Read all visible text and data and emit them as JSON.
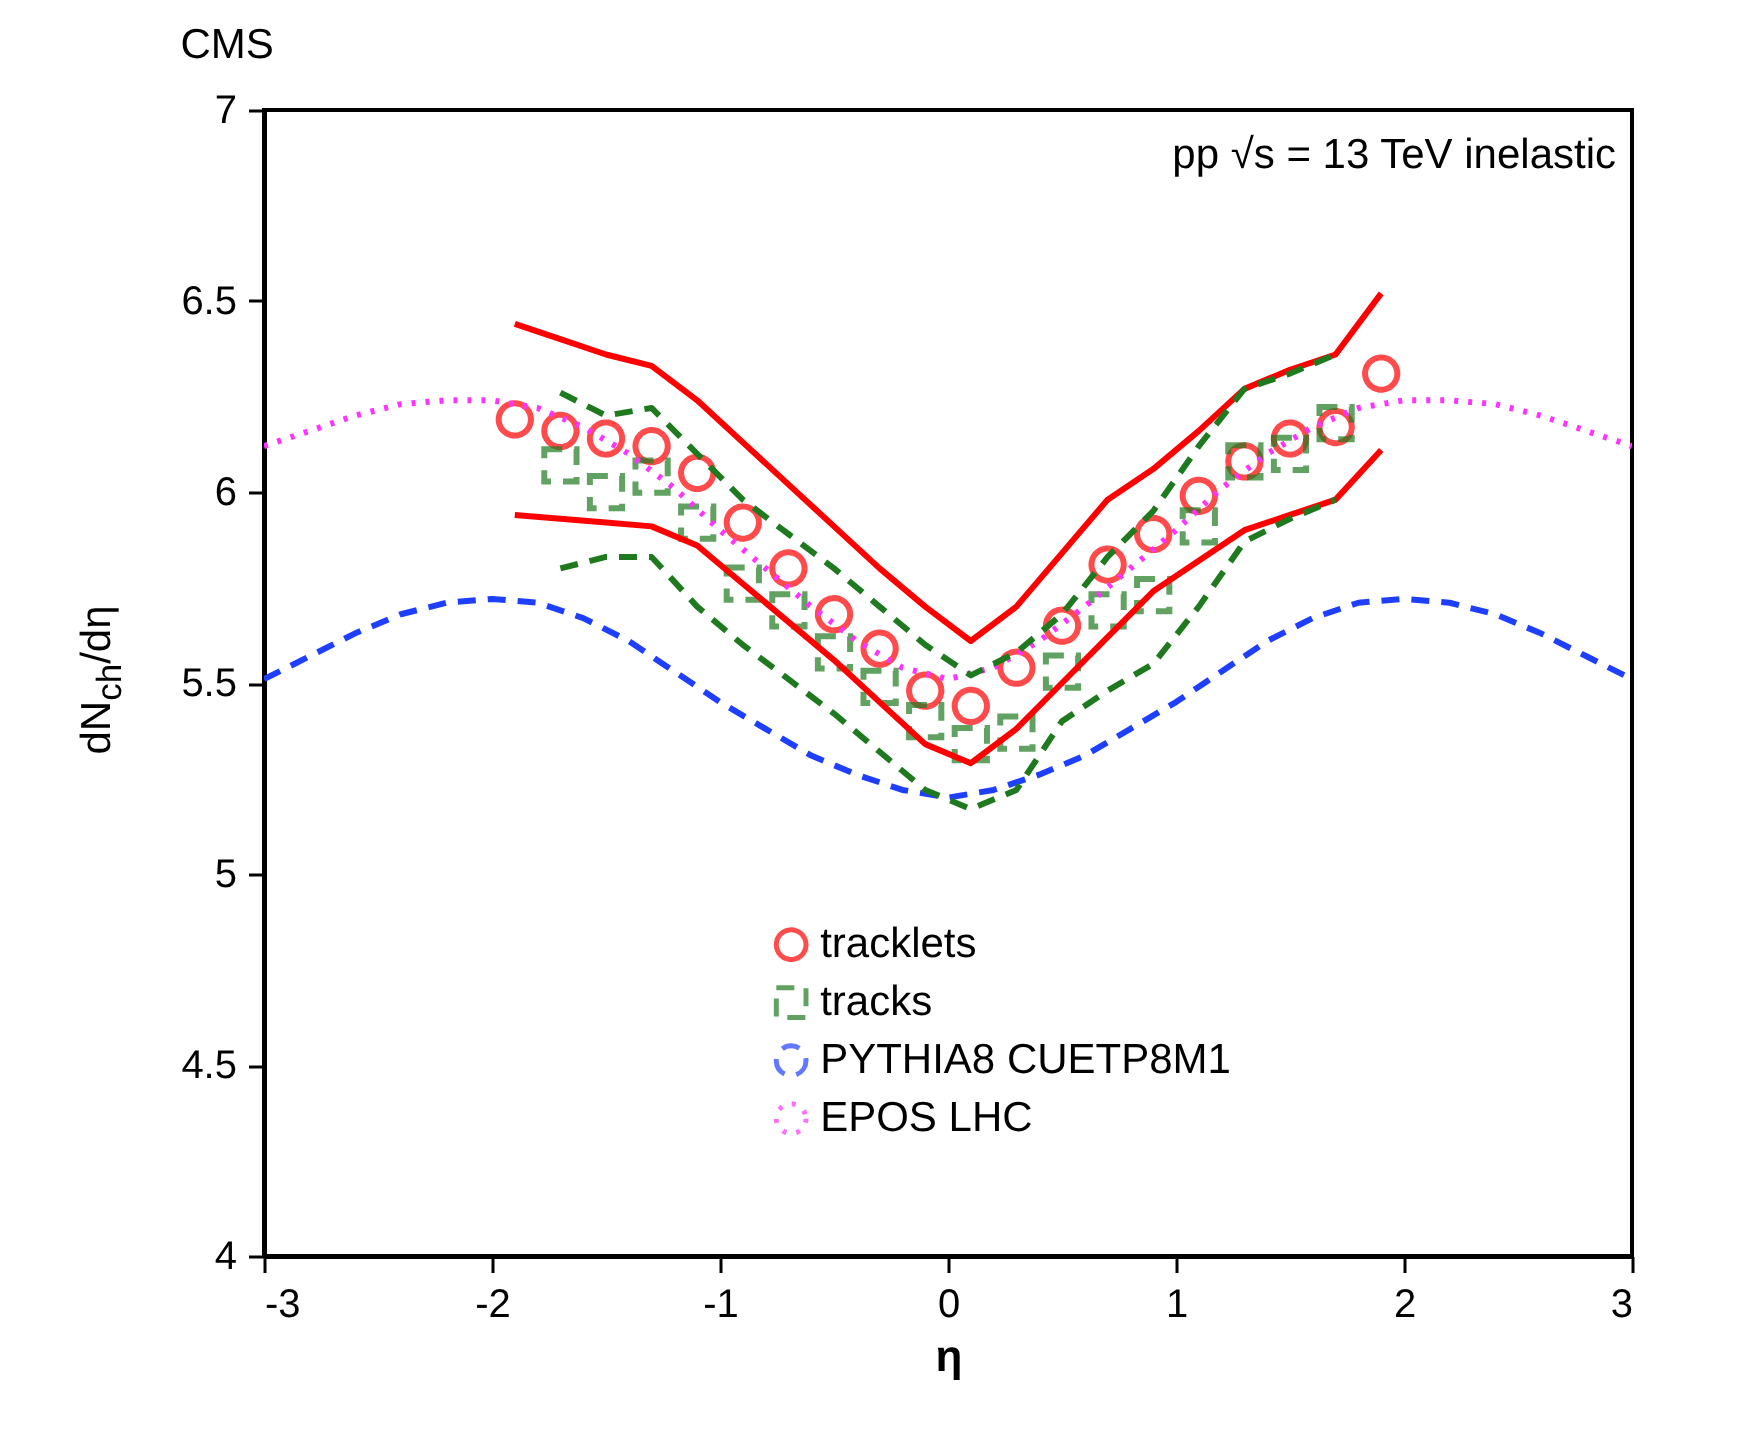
{
  "chart_data": {
    "type": "scatter",
    "title": "CMS",
    "xlabel": "η",
    "ylabel": "dN$_{ch}$/dη",
    "annotations": [
      "pp √s = 13 TeV inelastic"
    ],
    "xlim": [
      -3,
      3
    ],
    "xticks": [
      -3,
      -2,
      -1,
      0,
      1,
      2,
      3
    ],
    "ylim": [
      4,
      7
    ],
    "yticks": [
      4,
      4.5,
      5,
      5.5,
      6,
      6.5,
      7
    ],
    "grid": false,
    "legend": "bottom right",
    "series": [
      {
        "name": "tracklets",
        "marker": "circle",
        "line_style": "solid",
        "color": "#ff0000",
        "x": [
          -1.9,
          -1.7,
          -1.5,
          -1.3,
          -1.1,
          -0.9,
          -0.7,
          -0.5,
          -0.3,
          -0.1,
          0.1,
          0.3,
          0.5,
          0.7,
          0.9,
          1.1,
          1.3,
          1.5,
          1.7,
          1.9
        ],
        "values": [
          6.19,
          6.16,
          6.14,
          6.12,
          6.05,
          5.92,
          5.8,
          5.68,
          5.59,
          5.48,
          5.44,
          5.54,
          5.65,
          5.81,
          5.89,
          5.99,
          6.08,
          6.14,
          6.17,
          6.31
        ]
      },
      {
        "name": "tracks",
        "marker": "square",
        "line_style": "dashed",
        "color": "#1f7a1f",
        "x": [
          -1.7,
          -1.5,
          -1.3,
          -1.1,
          -0.9,
          -0.7,
          -0.5,
          -0.3,
          -0.1,
          0.1,
          0.3,
          0.5,
          0.7,
          0.9,
          1.1,
          1.3,
          1.5,
          1.7
        ],
        "values": [
          6.07,
          6.0,
          6.04,
          5.92,
          5.76,
          5.69,
          5.58,
          5.49,
          5.4,
          5.34,
          5.37,
          5.53,
          5.69,
          5.73,
          5.91,
          6.08,
          6.1,
          6.18
        ]
      },
      {
        "name": "PYTHIA8 CUETP8M1",
        "type": "line",
        "line_style": "dashed",
        "color": "#1f3fff",
        "x": [
          -3,
          -2.8,
          -2.6,
          -2.4,
          -2.2,
          -2,
          -1.8,
          -1.6,
          -1.4,
          -1.2,
          -1,
          -0.8,
          -0.6,
          -0.4,
          -0.2,
          0,
          0.2,
          0.4,
          0.6,
          0.8,
          1,
          1.2,
          1.4,
          1.6,
          1.8,
          2,
          2.2,
          2.4,
          2.6,
          2.8,
          3
        ],
        "values": [
          5.51,
          5.57,
          5.63,
          5.68,
          5.71,
          5.72,
          5.71,
          5.67,
          5.61,
          5.53,
          5.45,
          5.38,
          5.31,
          5.26,
          5.22,
          5.2,
          5.22,
          5.26,
          5.31,
          5.38,
          5.45,
          5.53,
          5.61,
          5.67,
          5.71,
          5.72,
          5.71,
          5.68,
          5.63,
          5.57,
          5.51
        ]
      },
      {
        "name": "EPOS LHC",
        "type": "line",
        "line_style": "dotted",
        "color": "#ff33ff",
        "x": [
          -3,
          -2.8,
          -2.6,
          -2.4,
          -2.2,
          -2,
          -1.8,
          -1.6,
          -1.4,
          -1.2,
          -1,
          -0.8,
          -0.6,
          -0.4,
          -0.2,
          0,
          0.2,
          0.4,
          0.6,
          0.8,
          1,
          1.2,
          1.4,
          1.6,
          1.8,
          2,
          2.2,
          2.4,
          2.6,
          2.8,
          3
        ],
        "values": [
          6.12,
          6.16,
          6.2,
          6.23,
          6.24,
          6.24,
          6.22,
          6.17,
          6.1,
          6.01,
          5.9,
          5.8,
          5.7,
          5.61,
          5.54,
          5.51,
          5.54,
          5.61,
          5.7,
          5.8,
          5.9,
          6.01,
          6.1,
          6.17,
          6.22,
          6.24,
          6.24,
          6.23,
          6.2,
          6.16,
          6.12
        ]
      },
      {
        "type": "line",
        "line_style": "solid",
        "color": "#ff0000",
        "x": [
          -1.9,
          -1.7,
          -1.5,
          -1.3,
          -1.1,
          -0.9,
          -0.7,
          -0.5,
          -0.3,
          -0.1,
          0.1,
          0.3,
          0.5,
          0.7,
          0.9,
          1.1,
          1.3,
          1.5,
          1.7,
          1.9
        ],
        "values": [
          6.44,
          6.4,
          6.36,
          6.33,
          6.24,
          6.13,
          6.02,
          5.91,
          5.8,
          5.7,
          5.61,
          5.7,
          5.84,
          5.98,
          6.06,
          6.16,
          6.27,
          6.32,
          6.36,
          6.52
        ]
      },
      {
        "type": "line",
        "line_style": "solid",
        "color": "#ff0000",
        "x": [
          -1.9,
          -1.7,
          -1.5,
          -1.3,
          -1.1,
          -0.9,
          -0.7,
          -0.5,
          -0.3,
          -0.1,
          0.1,
          0.3,
          0.5,
          0.7,
          0.9,
          1.1,
          1.3,
          1.5,
          1.7,
          1.9
        ],
        "values": [
          5.94,
          5.93,
          5.92,
          5.91,
          5.86,
          5.76,
          5.66,
          5.56,
          5.45,
          5.34,
          5.29,
          5.38,
          5.5,
          5.62,
          5.74,
          5.82,
          5.9,
          5.94,
          5.98,
          6.11
        ]
      },
      {
        "type": "line",
        "line_style": "dashed",
        "color": "#1f7a1f",
        "x": [
          -1.7,
          -1.5,
          -1.3,
          -1.1,
          -0.9,
          -0.7,
          -0.5,
          -0.3,
          -0.1,
          0.1,
          0.3,
          0.5,
          0.7,
          0.9,
          1.1,
          1.3,
          1.5,
          1.7
        ],
        "values": [
          6.26,
          6.2,
          6.22,
          6.1,
          5.98,
          5.89,
          5.8,
          5.7,
          5.6,
          5.52,
          5.58,
          5.68,
          5.83,
          5.95,
          6.12,
          6.27,
          6.31,
          6.36
        ]
      },
      {
        "type": "line",
        "line_style": "dashed",
        "color": "#1f7a1f",
        "x": [
          -1.7,
          -1.5,
          -1.3,
          -1.1,
          -0.9,
          -0.7,
          -0.5,
          -0.3,
          -0.1,
          0.1,
          0.3,
          0.5,
          0.7,
          0.9,
          1.1,
          1.3,
          1.5,
          1.7
        ],
        "values": [
          5.8,
          5.83,
          5.83,
          5.7,
          5.6,
          5.51,
          5.42,
          5.32,
          5.22,
          5.17,
          5.22,
          5.4,
          5.48,
          5.55,
          5.7,
          5.87,
          5.93,
          5.98
        ]
      }
    ]
  }
}
